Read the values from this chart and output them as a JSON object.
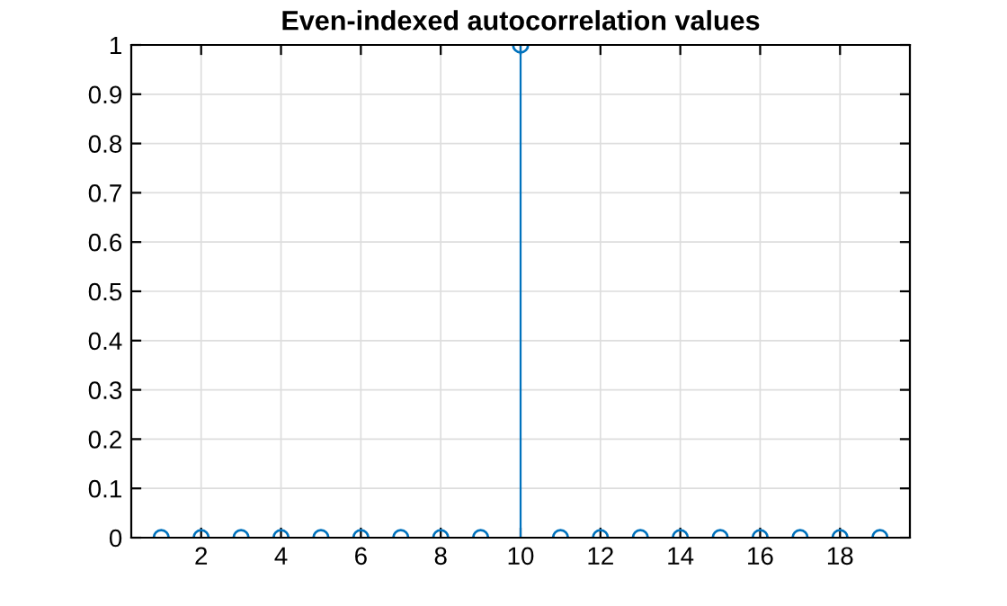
{
  "chart_data": {
    "type": "lollipop",
    "title": "Even-indexed autocorrelation values",
    "x": [
      1,
      2,
      3,
      4,
      5,
      6,
      7,
      8,
      9,
      10,
      11,
      12,
      13,
      14,
      15,
      16,
      17,
      18,
      19
    ],
    "series": [
      {
        "color": "#0072bd",
        "values": [
          0,
          0,
          0,
          0,
          0,
          0,
          0,
          0,
          0,
          1,
          0,
          0,
          0,
          0,
          0,
          0,
          0,
          0,
          0
        ]
      }
    ],
    "xlim": [
      0.25,
      19.75
    ],
    "xticks": [
      2,
      4,
      6,
      8,
      10,
      12,
      14,
      16,
      18
    ],
    "ylim": [
      0,
      1
    ],
    "yticks": [
      0,
      0.1,
      0.2,
      0.3,
      0.4,
      0.5,
      0.6,
      0.7,
      0.8,
      0.9,
      1
    ],
    "grid": true,
    "marker": "circle"
  }
}
